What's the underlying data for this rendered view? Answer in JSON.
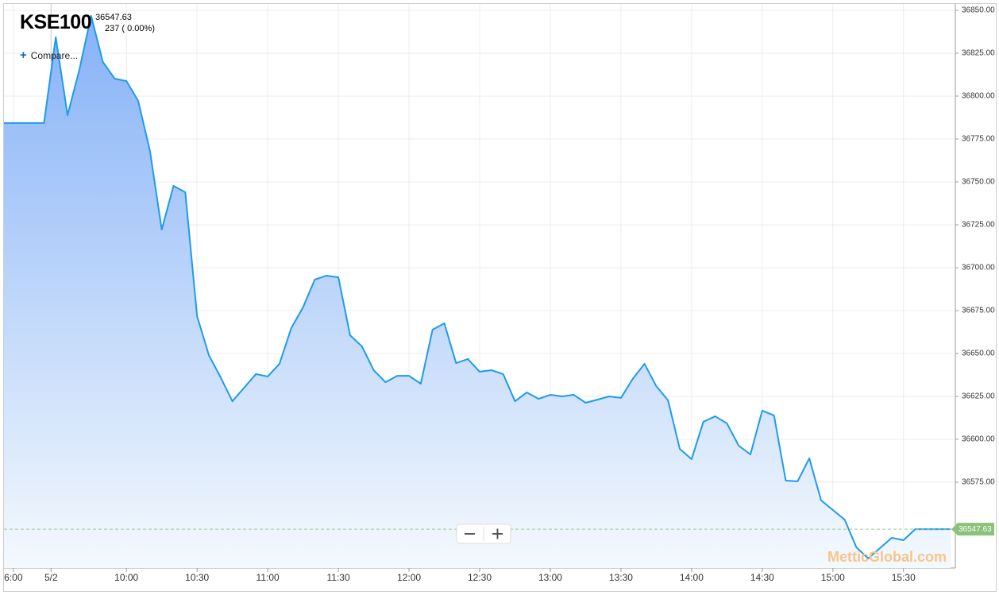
{
  "header": {
    "symbol": "KSE100",
    "price": "36547.63",
    "change": "237 ( 0.00%)",
    "compare": "Compare...",
    "watermark": "MetticGlobal.com"
  },
  "chart_data": {
    "type": "area",
    "color": "#1e9be9",
    "grid": true,
    "x": [
      548,
      565,
      570,
      575,
      580,
      585,
      590,
      595,
      600,
      605,
      610,
      615,
      620,
      625,
      630,
      635,
      640,
      645,
      650,
      655,
      660,
      665,
      670,
      675,
      680,
      685,
      690,
      695,
      700,
      705,
      710,
      715,
      720,
      725,
      730,
      735,
      740,
      745,
      750,
      755,
      760,
      765,
      770,
      775,
      780,
      785,
      790,
      795,
      800,
      805,
      810,
      815,
      820,
      825,
      830,
      835,
      840,
      845,
      850,
      855,
      860,
      865,
      870,
      875,
      880,
      885,
      890,
      895,
      900,
      905,
      910,
      915,
      920,
      925,
      930,
      935,
      950
    ],
    "values": [
      36784.3,
      36784.3,
      36834.3,
      36788.9,
      36815.3,
      36846.8,
      36819.9,
      36810.2,
      36808.8,
      36797.2,
      36768.1,
      36722.2,
      36747.7,
      36744,
      36671.8,
      36649.1,
      36636.1,
      36622.2,
      36630.1,
      36638,
      36636.6,
      36644,
      36664.8,
      36676.9,
      36693.1,
      36695.4,
      36694.4,
      36660.6,
      36654.2,
      36640.3,
      36633.3,
      36637,
      36637,
      36632.4,
      36663.9,
      36667.6,
      36644.4,
      36646.8,
      36639.4,
      36640.3,
      36638,
      36622.2,
      36627.3,
      36623.6,
      36625.9,
      36625,
      36625.9,
      36621.3,
      36623.1,
      36625,
      36624.1,
      36635.2,
      36644,
      36631,
      36622.7,
      36594.4,
      36588.4,
      36610.2,
      36613.4,
      36609.3,
      36596.3,
      36591.2,
      36616.7,
      36613.9,
      36575.9,
      36575.5,
      36588.9,
      36564.4,
      36558.8,
      36553.2,
      36537,
      36530.6,
      36536.6,
      36542.6,
      36541.2,
      36547.63,
      36547.63
    ],
    "xlim": [
      548,
      952
    ],
    "xticks": [
      {
        "value": 552,
        "label": "6:00"
      },
      {
        "value": 568,
        "label": "5/2"
      },
      {
        "value": 600,
        "label": "10:00"
      },
      {
        "value": 630,
        "label": "10:30"
      },
      {
        "value": 660,
        "label": "11:00"
      },
      {
        "value": 690,
        "label": "11:30"
      },
      {
        "value": 720,
        "label": "12:00"
      },
      {
        "value": 750,
        "label": "12:30"
      },
      {
        "value": 780,
        "label": "13:00"
      },
      {
        "value": 810,
        "label": "13:30"
      },
      {
        "value": 840,
        "label": "14:00"
      },
      {
        "value": 870,
        "label": "14:30"
      },
      {
        "value": 900,
        "label": "15:00"
      },
      {
        "value": 930,
        "label": "15:30"
      }
    ],
    "ylim": [
      36525,
      36853.7
    ],
    "yticks": [
      {
        "value": 36575,
        "label": "36575.00"
      },
      {
        "value": 36600,
        "label": "36600.00"
      },
      {
        "value": 36625,
        "label": "36625.00"
      },
      {
        "value": 36650,
        "label": "36650.00"
      },
      {
        "value": 36675,
        "label": "36675.00"
      },
      {
        "value": 36700,
        "label": "36700.00"
      },
      {
        "value": 36725,
        "label": "36725.00"
      },
      {
        "value": 36750,
        "label": "36750.00"
      },
      {
        "value": 36775,
        "label": "36775.00"
      },
      {
        "value": 36800,
        "label": "36800.00"
      },
      {
        "value": 36825,
        "label": "36825.00"
      },
      {
        "value": 36850,
        "label": "36850.00"
      }
    ]
  }
}
